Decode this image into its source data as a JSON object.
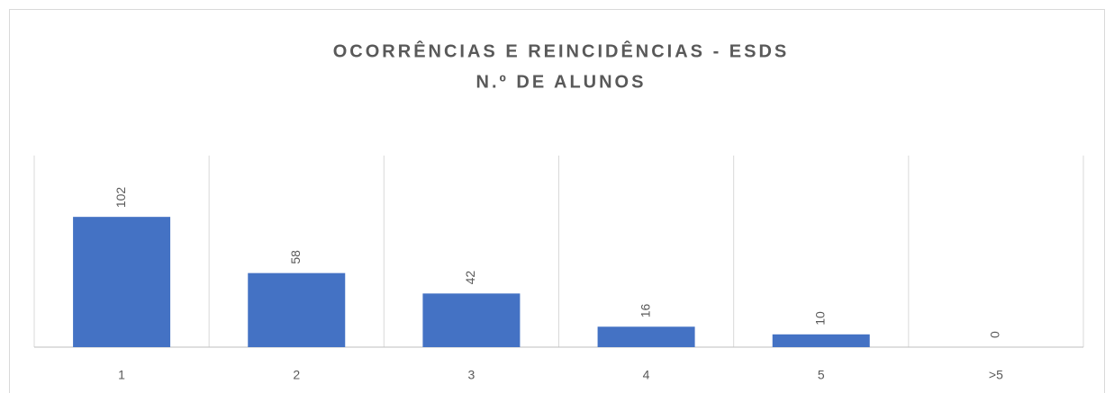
{
  "chart_data": {
    "type": "bar",
    "title": "OCORRÊNCIAS E REINCIDÊNCIAS - ESDS",
    "subtitle": "N.º DE ALUNOS",
    "categories": [
      "1",
      "2",
      "3",
      "4",
      "5",
      ">5"
    ],
    "values": [
      102,
      58,
      42,
      16,
      10,
      0
    ],
    "color": "#4472c4",
    "ylim": [
      0,
      150
    ]
  }
}
